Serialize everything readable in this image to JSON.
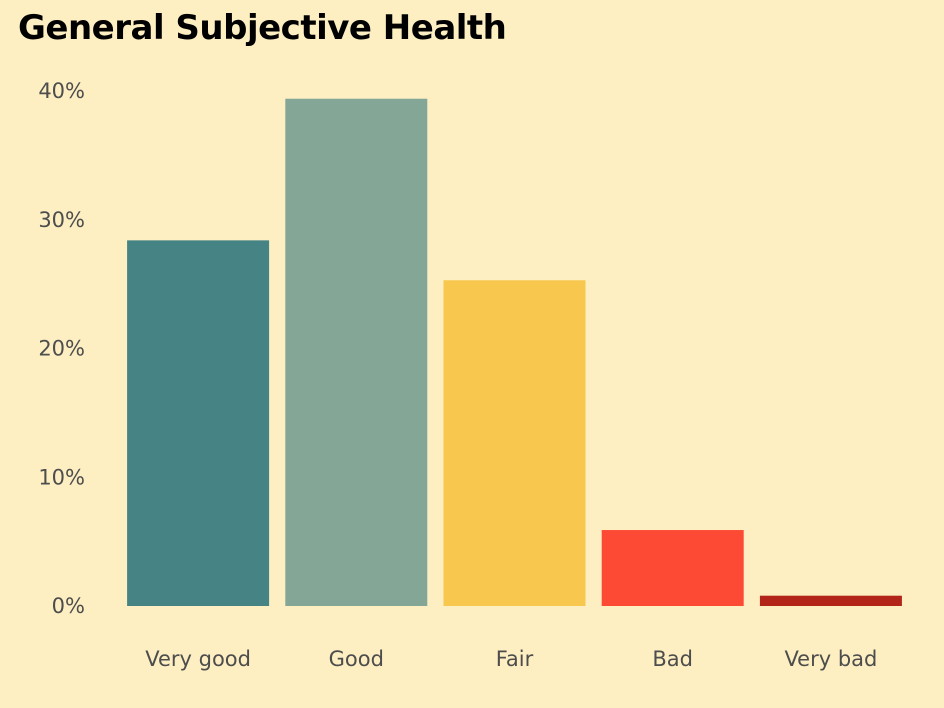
{
  "chart_data": {
    "type": "bar",
    "title": "General Subjective Health",
    "xlabel": "",
    "ylabel": "",
    "categories": [
      "Very good",
      "Good",
      "Fair",
      "Bad",
      "Very bad"
    ],
    "values": [
      28.4,
      39.4,
      25.3,
      5.9,
      0.8
    ],
    "colors": [
      "#468384",
      "#83a697",
      "#f8c74e",
      "#fd4a35",
      "#b22318"
    ],
    "ylim": [
      0,
      40
    ],
    "yticks": [
      0,
      10,
      20,
      30,
      40
    ],
    "ytick_labels": [
      "0%",
      "10%",
      "20%",
      "30%",
      "40%"
    ],
    "grid": false,
    "legend": "none",
    "background": "#fdefc2"
  }
}
